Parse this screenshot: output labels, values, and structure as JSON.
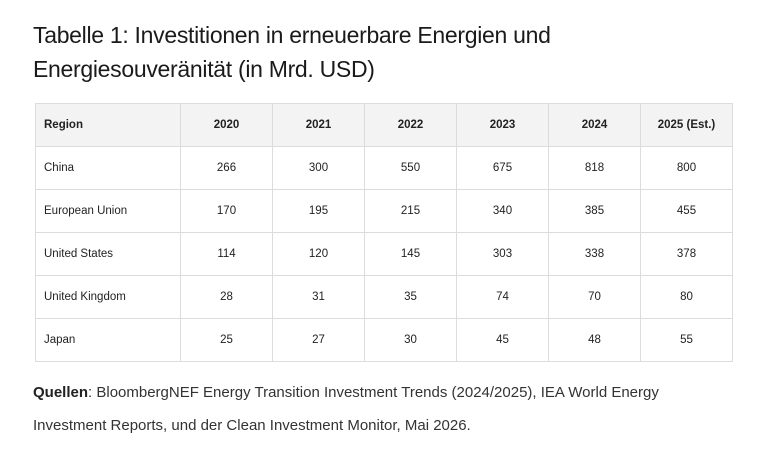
{
  "title": "Tabelle 1: Investitionen in erneuerbare Energien und Energiesouveränität (in Mrd. USD)",
  "table": {
    "header": [
      "Region",
      "2020",
      "2021",
      "2022",
      "2023",
      "2024",
      "2025 (Est.)"
    ],
    "rows": [
      [
        "China",
        266,
        300,
        550,
        675,
        818,
        800
      ],
      [
        "European Union",
        170,
        195,
        215,
        340,
        385,
        455
      ],
      [
        "United States",
        114,
        120,
        145,
        303,
        338,
        378
      ],
      [
        "United Kingdom",
        28,
        31,
        35,
        74,
        70,
        80
      ],
      [
        "Japan",
        25,
        27,
        30,
        45,
        48,
        55
      ]
    ]
  },
  "source": {
    "label": "Quellen",
    "text": ": BloombergNEF Energy Transition Investment Trends (2024/2025), IEA World Energy Investment Reports, und der Clean Investment Monitor, Mai 2026."
  }
}
